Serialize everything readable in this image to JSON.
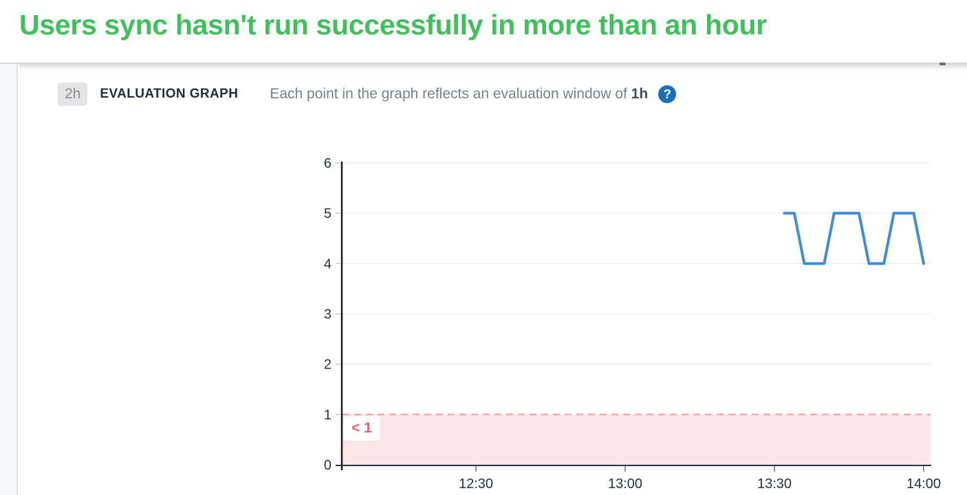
{
  "header": {
    "title": "Users sync hasn't run successfully in more than an hour",
    "title_color": "#3ec05a"
  },
  "section": {
    "duration_badge": "2h",
    "label": "EVALUATION GRAPH",
    "description_prefix": "Each point in the graph reflects an evaluation window of ",
    "window": "1h",
    "help_glyph": "?",
    "help_icon_color": "#1b6fb5"
  },
  "chart_data": {
    "type": "line",
    "title": "",
    "xlabel": "",
    "ylabel": "",
    "grid": true,
    "legend": "none",
    "grid_color": "#eaeaea",
    "ylim": [
      0,
      6
    ],
    "y_axis_ticks": [
      0,
      1,
      2,
      3,
      4,
      5,
      6
    ],
    "x_axis_ticks": [
      "12:30",
      "13:00",
      "13:30",
      "14:00"
    ],
    "x_start": "12:03",
    "x_end": "14:01",
    "series": [
      {
        "name": "evaluation",
        "color": "#3e8ce2",
        "points": [
          {
            "t": "13:32",
            "v": 5
          },
          {
            "t": "13:34",
            "v": 5
          },
          {
            "t": "13:36",
            "v": 4
          },
          {
            "t": "13:40",
            "v": 4
          },
          {
            "t": "13:42",
            "v": 5
          },
          {
            "t": "13:47",
            "v": 5
          },
          {
            "t": "13:49",
            "v": 4
          },
          {
            "t": "13:52",
            "v": 4
          },
          {
            "t": "13:54",
            "v": 5
          },
          {
            "t": "13:58",
            "v": 5
          },
          {
            "t": "14:00",
            "v": 4
          }
        ]
      }
    ],
    "threshold": {
      "value": 1,
      "label": "< 1",
      "direction": "below",
      "line_color": "#f5a9b0",
      "fill_color": "#fbe7e9",
      "label_color": "#ee5f6d"
    }
  }
}
